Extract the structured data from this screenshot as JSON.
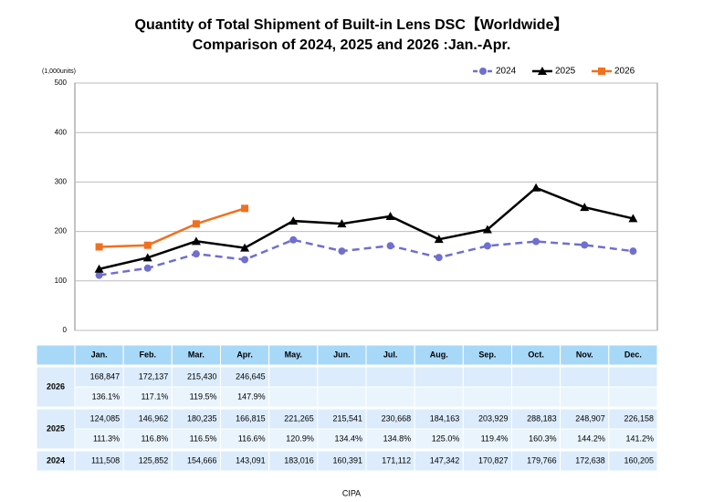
{
  "chart_data": {
    "type": "line",
    "title": "Quantity of Total Shipment of Built-in Lens DSC【Worldwide】",
    "subtitle": "Comparison of 2024, 2025 and 2026 :Jan.-Apr.",
    "y_unit": "(1,000units)",
    "source": "CIPA",
    "categories": [
      "Jan.",
      "Feb.",
      "Mar.",
      "Apr.",
      "May.",
      "Jun.",
      "Jul.",
      "Aug.",
      "Sep.",
      "Oct.",
      "Nov.",
      "Dec."
    ],
    "ylim": [
      0,
      500
    ],
    "yticks": [
      0,
      100,
      200,
      300,
      400,
      500
    ],
    "grid": true,
    "series": [
      {
        "name": "2024",
        "color": "#6f6fd0",
        "dash": true,
        "marker": "circle",
        "values": [
          111.508,
          125.852,
          154.666,
          143.091,
          183.016,
          160.391,
          171.112,
          147.342,
          170.827,
          179.766,
          172.638,
          160.205
        ],
        "value_labels": [
          "111,508",
          "125,852",
          "154,666",
          "143,091",
          "183,016",
          "160,391",
          "171,112",
          "147,342",
          "170,827",
          "179,766",
          "172,638",
          "160,205"
        ]
      },
      {
        "name": "2025",
        "color": "#000000",
        "dash": false,
        "marker": "triangle",
        "values": [
          124.085,
          146.962,
          180.235,
          166.815,
          221.265,
          215.541,
          230.668,
          184.163,
          203.929,
          288.183,
          248.907,
          226.158
        ],
        "value_labels": [
          "124,085",
          "146,962",
          "180,235",
          "166,815",
          "221,265",
          "215,541",
          "230,668",
          "184,163",
          "203,929",
          "288,183",
          "248,907",
          "226,158"
        ],
        "yoy": [
          "111.3%",
          "116.8%",
          "116.5%",
          "116.6%",
          "120.9%",
          "134.4%",
          "134.8%",
          "125.0%",
          "119.4%",
          "160.3%",
          "144.2%",
          "141.2%"
        ]
      },
      {
        "name": "2026",
        "color": "#f07020",
        "dash": false,
        "marker": "square",
        "values": [
          168.847,
          172.137,
          215.43,
          246.645,
          null,
          null,
          null,
          null,
          null,
          null,
          null,
          null
        ],
        "value_labels": [
          "168,847",
          "172,137",
          "215,430",
          "246,645",
          null,
          null,
          null,
          null,
          null,
          null,
          null,
          null
        ],
        "yoy": [
          "136.1%",
          "117.1%",
          "119.5%",
          "147.9%",
          null,
          null,
          null,
          null,
          null,
          null,
          null,
          null
        ]
      }
    ]
  }
}
